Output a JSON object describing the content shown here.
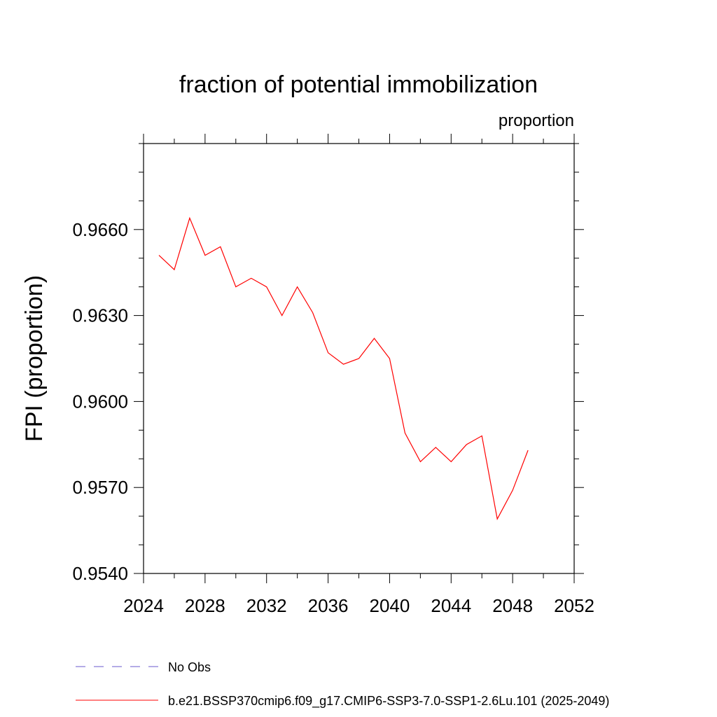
{
  "chart_data": {
    "type": "line",
    "title": "fraction of potential immobilization",
    "units_label": "proportion",
    "xlabel": "",
    "ylabel": "FPI  (proportion)",
    "xlim": [
      2024,
      2052
    ],
    "ylim": [
      0.954,
      0.969
    ],
    "x_ticks": [
      "2024",
      "2028",
      "2032",
      "2036",
      "2040",
      "2044",
      "2048",
      "2052"
    ],
    "y_ticks": [
      "0.9540",
      "0.9570",
      "0.9600",
      "0.9630",
      "0.9660"
    ],
    "grid": false,
    "series": [
      {
        "name": "b.e21.BSSP370cmip6.f09_g17.CMIP6-SSP3-7.0-SSP1-2.6Lu.101 (2025-2049)",
        "color": "#ff0000",
        "line_style": "solid",
        "x": [
          2025,
          2026,
          2027,
          2028,
          2029,
          2030,
          2031,
          2032,
          2033,
          2034,
          2035,
          2036,
          2037,
          2038,
          2039,
          2040,
          2041,
          2042,
          2043,
          2044,
          2045,
          2046,
          2047,
          2048,
          2049
        ],
        "y": [
          0.9651,
          0.9646,
          0.9664,
          0.9651,
          0.9654,
          0.964,
          0.9643,
          0.964,
          0.963,
          0.964,
          0.9631,
          0.9617,
          0.9613,
          0.9615,
          0.9622,
          0.9615,
          0.9589,
          0.9579,
          0.9584,
          0.9579,
          0.9585,
          0.9588,
          0.9559,
          0.9569,
          0.9583
        ]
      }
    ],
    "legend": [
      {
        "label": "No Obs",
        "color": "#6a5acd",
        "line_style": "dashed"
      },
      {
        "label": "b.e21.BSSP370cmip6.f09_g17.CMIP6-SSP3-7.0-SSP1-2.6Lu.101 (2025-2049)",
        "color": "#ff0000",
        "line_style": "solid"
      }
    ],
    "legend_position": "bottom"
  }
}
